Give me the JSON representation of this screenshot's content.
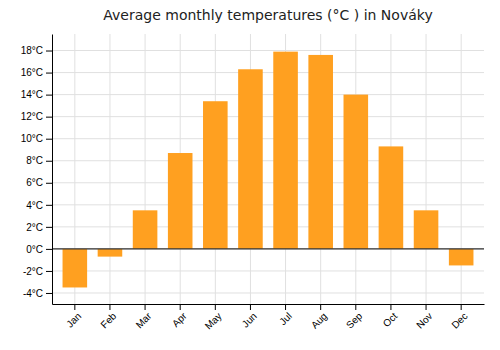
{
  "chart_data": {
    "type": "bar",
    "title": "Average monthly temperatures (°C ) in Nováky",
    "categories": [
      "Jan",
      "Feb",
      "Mar",
      "Apr",
      "May",
      "Jun",
      "Jul",
      "Aug",
      "Sep",
      "Oct",
      "Nov",
      "Dec"
    ],
    "values": [
      -3.5,
      -0.7,
      3.5,
      8.7,
      13.4,
      16.3,
      17.9,
      17.6,
      14.0,
      9.3,
      3.5,
      -1.5
    ],
    "color": "#FFA020",
    "ylim": [
      -5,
      19.5
    ],
    "yticks": [
      {
        "value": -4,
        "label": "-4°C"
      },
      {
        "value": -2,
        "label": "-2°C"
      },
      {
        "value": 0,
        "label": "0°C"
      },
      {
        "value": 2,
        "label": "2°C"
      },
      {
        "value": 4,
        "label": "4°C"
      },
      {
        "value": 6,
        "label": "6°C"
      },
      {
        "value": 8,
        "label": "8°C"
      },
      {
        "value": 10,
        "label": "10°C"
      },
      {
        "value": 12,
        "label": "12°C"
      },
      {
        "value": 14,
        "label": "14°C"
      },
      {
        "value": 16,
        "label": "16°C"
      },
      {
        "value": 18,
        "label": "18°C"
      }
    ],
    "grid": true
  }
}
